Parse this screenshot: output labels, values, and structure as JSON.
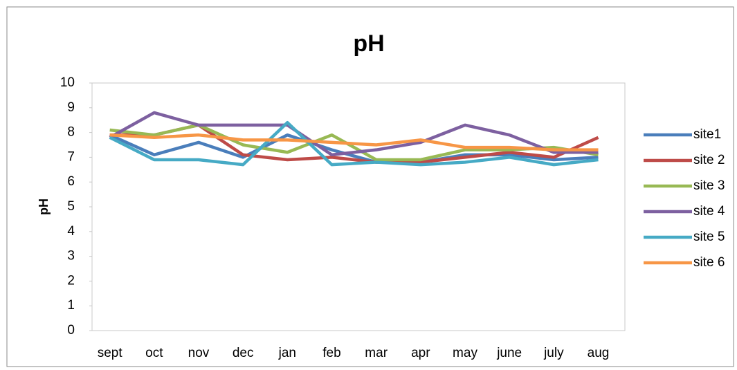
{
  "chart_data": {
    "type": "line",
    "title": "pH",
    "y_label": "pH",
    "categories": [
      "sept",
      "oct",
      "nov",
      "dec",
      "jan",
      "feb",
      "mar",
      "apr",
      "may",
      "june",
      "july",
      "aug"
    ],
    "ylim": [
      0,
      10
    ],
    "yticks": [
      0,
      1,
      2,
      3,
      4,
      5,
      6,
      7,
      8,
      9,
      10
    ],
    "grid": false,
    "legend": "right",
    "series": [
      {
        "name": "site1",
        "color": "#4a7ebb",
        "values": [
          7.9,
          7.1,
          7.6,
          7.0,
          7.9,
          7.3,
          6.8,
          6.8,
          7.1,
          7.1,
          6.9,
          7.0
        ]
      },
      {
        "name": "site 2",
        "color": "#be4b48",
        "values": [
          7.9,
          7.9,
          8.3,
          7.1,
          6.9,
          7.0,
          6.8,
          6.8,
          7.0,
          7.2,
          7.0,
          7.8
        ]
      },
      {
        "name": "site 3",
        "color": "#98b954",
        "values": [
          8.1,
          7.9,
          8.3,
          7.5,
          7.2,
          7.9,
          6.9,
          6.9,
          7.3,
          7.3,
          7.4,
          7.1
        ]
      },
      {
        "name": "site 4",
        "color": "#7d60a0",
        "values": [
          7.8,
          8.8,
          8.3,
          8.3,
          8.3,
          7.1,
          7.3,
          7.6,
          8.3,
          7.9,
          7.2,
          7.2
        ]
      },
      {
        "name": "site 5",
        "color": "#46aac5",
        "values": [
          7.8,
          6.9,
          6.9,
          6.7,
          8.4,
          6.7,
          6.8,
          6.7,
          6.8,
          7.0,
          6.7,
          6.9
        ]
      },
      {
        "name": "site 6",
        "color": "#f79646",
        "values": [
          7.9,
          7.8,
          7.9,
          7.7,
          7.7,
          7.6,
          7.5,
          7.7,
          7.4,
          7.4,
          7.3,
          7.3
        ]
      }
    ]
  }
}
